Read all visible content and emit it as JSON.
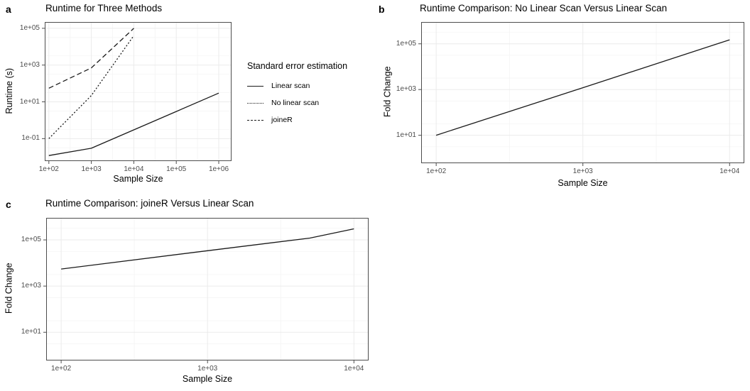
{
  "figure": {
    "background": "#ffffff",
    "line_color": "#1a1a1a",
    "grid_color": "#ebebeb",
    "minor_grid_color": "#f5f5f5",
    "panel_border_color": "#4d4d4d",
    "tick_label_color": "#4d4d4d",
    "text_color": "#000000"
  },
  "legend": {
    "title": "Standard error estimation",
    "items": [
      {
        "label": "Linear scan",
        "dash": "solid"
      },
      {
        "label": "No linear scan",
        "dash": "dotted"
      },
      {
        "label": "joineR",
        "dash": "dashed"
      }
    ]
  },
  "chart_data": [
    {
      "id": "a",
      "panel_label": "a",
      "type": "line",
      "title": "Runtime for Three Methods",
      "xlabel": "Sample Size",
      "ylabel": "Runtime (s)",
      "x_scale": "log10",
      "y_scale": "log10",
      "xlim": [
        80,
        2000000
      ],
      "ylim": [
        0.006,
        220000
      ],
      "grid": true,
      "legend_position": "right",
      "x_ticks": {
        "values": [
          100,
          1000,
          10000,
          100000,
          1000000
        ],
        "labels": [
          "1e+02",
          "1e+03",
          "1e+04",
          "1e+05",
          "1e+06"
        ]
      },
      "y_ticks": {
        "values": [
          0.1,
          10,
          1000,
          100000
        ],
        "labels": [
          "1e-01",
          "1e+01",
          "1e+03",
          "1e+05"
        ]
      },
      "series": [
        {
          "name": "Linear scan",
          "dash": "solid",
          "x": [
            100,
            1000,
            10000,
            100000,
            1000000
          ],
          "y": [
            0.012,
            0.03,
            0.3,
            3,
            30
          ]
        },
        {
          "name": "No linear scan",
          "dash": "dotted",
          "x": [
            100,
            1000,
            10000
          ],
          "y": [
            0.1,
            22,
            40000
          ]
        },
        {
          "name": "joineR",
          "dash": "dashed",
          "x": [
            100,
            1000,
            10000
          ],
          "y": [
            55,
            700,
            100000
          ]
        }
      ]
    },
    {
      "id": "b",
      "panel_label": "b",
      "type": "line",
      "title": "Runtime Comparison: No Linear Scan Versus Linear Scan",
      "xlabel": "Sample Size",
      "ylabel": "Fold Change",
      "x_scale": "log10",
      "y_scale": "log10",
      "xlim": [
        79,
        12600
      ],
      "ylim": [
        0.6,
        900000
      ],
      "grid": true,
      "legend_position": "none",
      "x_ticks": {
        "values": [
          100,
          1000,
          10000
        ],
        "labels": [
          "1e+02",
          "1e+03",
          "1e+04"
        ]
      },
      "y_ticks": {
        "values": [
          10,
          1000,
          100000
        ],
        "labels": [
          "1e+01",
          "1e+03",
          "1e+05"
        ]
      },
      "series": [
        {
          "name": "No linear scan vs linear scan",
          "dash": "solid",
          "x": [
            100,
            1000,
            10000
          ],
          "y": [
            10,
            1200,
            150000
          ]
        }
      ]
    },
    {
      "id": "c",
      "panel_label": "c",
      "type": "line",
      "title": "Runtime Comparison: joineR Versus Linear Scan",
      "xlabel": "Sample Size",
      "ylabel": "Fold Change",
      "x_scale": "log10",
      "y_scale": "log10",
      "xlim": [
        79,
        12600
      ],
      "ylim": [
        0.6,
        900000
      ],
      "grid": true,
      "legend_position": "none",
      "x_ticks": {
        "values": [
          100,
          1000,
          10000
        ],
        "labels": [
          "1e+02",
          "1e+03",
          "1e+04"
        ]
      },
      "y_ticks": {
        "values": [
          10,
          1000,
          100000
        ],
        "labels": [
          "1e+01",
          "1e+03",
          "1e+05"
        ]
      },
      "series": [
        {
          "name": "joineR vs linear scan",
          "dash": "solid",
          "x": [
            100,
            1000,
            5000,
            10000
          ],
          "y": [
            5500,
            34000,
            120000,
            300000
          ]
        }
      ]
    }
  ]
}
